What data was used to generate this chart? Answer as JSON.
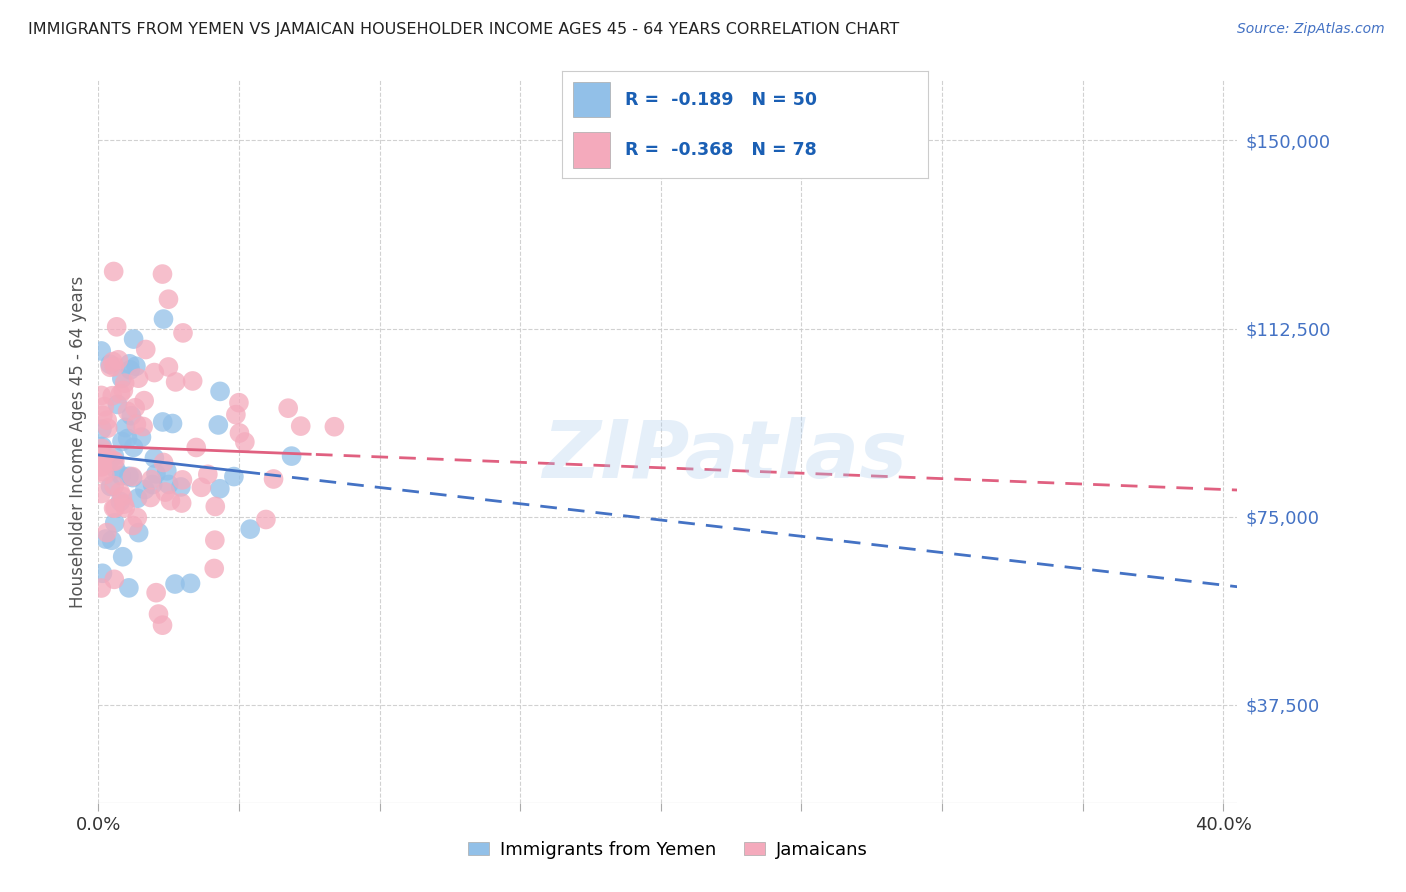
{
  "title": "IMMIGRANTS FROM YEMEN VS JAMAICAN HOUSEHOLDER INCOME AGES 45 - 64 YEARS CORRELATION CHART",
  "source": "Source: ZipAtlas.com",
  "ylabel": "Householder Income Ages 45 - 64 years",
  "ytick_labels": [
    "$37,500",
    "$75,000",
    "$112,500",
    "$150,000"
  ],
  "ytick_values": [
    37500,
    75000,
    112500,
    150000
  ],
  "ylim": [
    18000,
    162000
  ],
  "xlim": [
    0.0,
    0.405
  ],
  "legend_r1": "R =  -0.189   N = 50",
  "legend_r2": "R =  -0.368   N = 78",
  "blue_color": "#92C0E8",
  "pink_color": "#F4AABC",
  "blue_line_color": "#4472C4",
  "pink_line_color": "#E06080",
  "title_color": "#333333",
  "axis_label_color": "#555555",
  "tick_color": "#4472C4",
  "grid_color": "#CCCCCC",
  "watermark": "ZIPatlas",
  "legend_text_color": "#1a5fb4"
}
